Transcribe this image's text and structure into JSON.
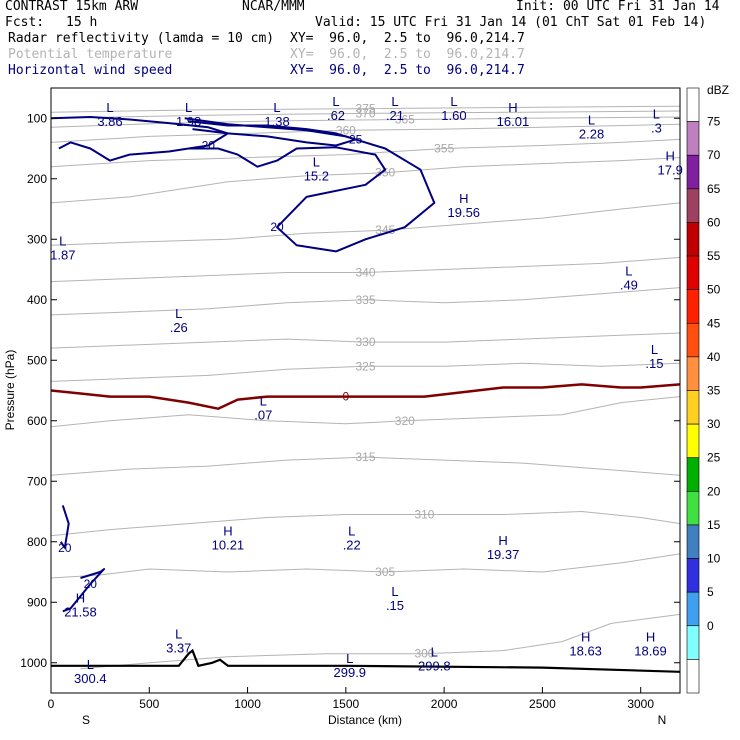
{
  "header": {
    "model": "CONTRAST 15km ARW",
    "center": "NCAR/MMM",
    "init": "Init: 00 UTC Fri 31 Jan 14",
    "fcst_label": "Fcst:",
    "fcst_value": "15 h",
    "valid": "Valid: 15 UTC Fri 31 Jan 14 (01 ChT Sat 01 Feb 14)"
  },
  "fields": [
    {
      "name": "Radar reflectivity (lamda = 10 cm)",
      "xy": "XY=  96.0,  2.5 to  96.0,214.7",
      "color": "#000000"
    },
    {
      "name": "Potential temperature",
      "xy": "XY=  96.0,  2.5 to  96.0,214.7",
      "color": "#b4b4b4"
    },
    {
      "name": "Horizontal wind speed",
      "xy": "XY=  96.0,  2.5 to  96.0,214.7",
      "color": "#000080"
    }
  ],
  "colorbar": {
    "unit": "dBZ",
    "levels": [
      "75",
      "70",
      "65",
      "60",
      "55",
      "50",
      "45",
      "40",
      "35",
      "30",
      "25",
      "20",
      "15",
      "10",
      "5",
      "0"
    ],
    "colors": [
      "#ffffff",
      "#c080c0",
      "#8020a0",
      "#a04060",
      "#c00000",
      "#e00000",
      "#ff2000",
      "#ff5010",
      "#ff9040",
      "#ffd020",
      "#ffff00",
      "#00b000",
      "#40e040",
      "#4080c0",
      "#3030e0",
      "#40a0f0",
      "#80ffff",
      "#ffffff"
    ]
  },
  "chart_data": {
    "type": "cross-section",
    "xlabel": "Distance (km)",
    "ylabel": "Pressure (hPa)",
    "xlim": [
      0,
      3200
    ],
    "ylim": [
      1050,
      50
    ],
    "x_ticks": [
      0,
      500,
      1000,
      1500,
      2000,
      2500,
      3000
    ],
    "y_ticks": [
      100,
      200,
      300,
      400,
      500,
      600,
      700,
      800,
      900,
      1000
    ],
    "x_ends": [
      "S",
      "N"
    ],
    "theta_contours": [
      {
        "label": "300",
        "pts": [
          [
            150,
            1010
          ],
          [
            500,
            1000
          ],
          [
            900,
            990
          ],
          [
            1400,
            985
          ],
          [
            1900,
            985
          ],
          [
            2300,
            980
          ],
          [
            2600,
            965
          ],
          [
            2850,
            935
          ],
          [
            3200,
            920
          ]
        ]
      },
      {
        "label": "305",
        "pts": [
          [
            0,
            860
          ],
          [
            250,
            855
          ],
          [
            500,
            845
          ],
          [
            900,
            850
          ],
          [
            1300,
            845
          ],
          [
            1700,
            850
          ],
          [
            2100,
            845
          ],
          [
            2500,
            850
          ],
          [
            2900,
            835
          ],
          [
            3200,
            820
          ]
        ]
      },
      {
        "label": "310",
        "pts": [
          [
            0,
            790
          ],
          [
            300,
            780
          ],
          [
            700,
            770
          ],
          [
            1100,
            760
          ],
          [
            1500,
            755
          ],
          [
            1900,
            755
          ],
          [
            2300,
            755
          ],
          [
            2700,
            750
          ],
          [
            3000,
            760
          ],
          [
            3200,
            770
          ]
        ]
      },
      {
        "label": "315",
        "pts": [
          [
            0,
            690
          ],
          [
            400,
            680
          ],
          [
            800,
            675
          ],
          [
            1200,
            665
          ],
          [
            1600,
            660
          ],
          [
            2000,
            665
          ],
          [
            2400,
            670
          ],
          [
            2800,
            680
          ],
          [
            3200,
            690
          ]
        ]
      },
      {
        "label": "320",
        "pts": [
          [
            0,
            610
          ],
          [
            300,
            600
          ],
          [
            700,
            590
          ],
          [
            1100,
            600
          ],
          [
            1500,
            605
          ],
          [
            1800,
            600
          ],
          [
            2200,
            595
          ],
          [
            2600,
            590
          ],
          [
            2900,
            570
          ],
          [
            3200,
            560
          ]
        ]
      },
      {
        "label": "325",
        "pts": [
          [
            0,
            535
          ],
          [
            400,
            530
          ],
          [
            800,
            525
          ],
          [
            1200,
            515
          ],
          [
            1600,
            510
          ],
          [
            2000,
            510
          ],
          [
            2400,
            505
          ],
          [
            2800,
            510
          ],
          [
            3200,
            505
          ]
        ]
      },
      {
        "label": "330",
        "pts": [
          [
            0,
            480
          ],
          [
            400,
            475
          ],
          [
            800,
            470
          ],
          [
            1200,
            465
          ],
          [
            1600,
            470
          ],
          [
            2000,
            470
          ],
          [
            2400,
            465
          ],
          [
            2800,
            460
          ],
          [
            3200,
            455
          ]
        ]
      },
      {
        "label": "335",
        "pts": [
          [
            0,
            425
          ],
          [
            400,
            420
          ],
          [
            800,
            415
          ],
          [
            1200,
            405
          ],
          [
            1600,
            400
          ],
          [
            2000,
            405
          ],
          [
            2400,
            400
          ],
          [
            2800,
            390
          ],
          [
            3200,
            380
          ]
        ]
      },
      {
        "label": "340",
        "pts": [
          [
            0,
            370
          ],
          [
            400,
            365
          ],
          [
            800,
            360
          ],
          [
            1200,
            355
          ],
          [
            1600,
            355
          ],
          [
            2000,
            350
          ],
          [
            2400,
            345
          ],
          [
            2800,
            340
          ],
          [
            3200,
            330
          ]
        ]
      },
      {
        "label": "345",
        "pts": [
          [
            0,
            310
          ],
          [
            400,
            305
          ],
          [
            900,
            300
          ],
          [
            1300,
            290
          ],
          [
            1700,
            285
          ],
          [
            2100,
            275
          ],
          [
            2500,
            265
          ],
          [
            2900,
            250
          ],
          [
            3200,
            240
          ]
        ]
      },
      {
        "label": "350",
        "pts": [
          [
            0,
            240
          ],
          [
            400,
            230
          ],
          [
            900,
            205
          ],
          [
            1300,
            195
          ],
          [
            1700,
            190
          ],
          [
            2100,
            180
          ],
          [
            2500,
            175
          ],
          [
            2900,
            170
          ],
          [
            3200,
            165
          ]
        ]
      },
      {
        "label": "355",
        "pts": [
          [
            0,
            180
          ],
          [
            500,
            170
          ],
          [
            1000,
            165
          ],
          [
            1500,
            160
          ],
          [
            2000,
            150
          ],
          [
            2500,
            145
          ],
          [
            2900,
            140
          ],
          [
            3200,
            135
          ]
        ]
      },
      {
        "label": "360",
        "pts": [
          [
            0,
            140
          ],
          [
            500,
            130
          ],
          [
            1000,
            125
          ],
          [
            1500,
            120
          ],
          [
            2000,
            118
          ],
          [
            2500,
            115
          ],
          [
            3200,
            110
          ]
        ]
      },
      {
        "label": "365",
        "pts": [
          [
            0,
            115
          ],
          [
            600,
            108
          ],
          [
            1200,
            104
          ],
          [
            1800,
            102
          ],
          [
            2400,
            100
          ],
          [
            3200,
            98
          ]
        ]
      },
      {
        "label": "370",
        "pts": [
          [
            0,
            100
          ],
          [
            800,
            95
          ],
          [
            1600,
            92
          ],
          [
            2400,
            90
          ],
          [
            3200,
            88
          ]
        ]
      },
      {
        "label": "375",
        "pts": [
          [
            0,
            90
          ],
          [
            800,
            86
          ],
          [
            1600,
            84
          ],
          [
            2400,
            82
          ],
          [
            3200,
            80
          ]
        ]
      }
    ],
    "wind_speed_contours": [
      {
        "label": "20",
        "pts": [
          [
            0,
            100
          ],
          [
            200,
            98
          ],
          [
            400,
            102
          ],
          [
            600,
            108
          ],
          [
            800,
            115
          ],
          [
            900,
            125
          ],
          [
            800,
            145
          ],
          [
            600,
            155
          ],
          [
            400,
            160
          ],
          [
            300,
            170
          ],
          [
            200,
            150
          ],
          [
            100,
            140
          ],
          [
            40,
            150
          ]
        ]
      },
      {
        "label": "20",
        "pts": [
          [
            680,
            100
          ],
          [
            900,
            110
          ],
          [
            1100,
            115
          ],
          [
            1300,
            120
          ],
          [
            1500,
            130
          ],
          [
            1700,
            150
          ],
          [
            1880,
            185
          ],
          [
            1950,
            240
          ],
          [
            1800,
            280
          ],
          [
            1600,
            300
          ],
          [
            1450,
            320
          ],
          [
            1250,
            310
          ],
          [
            1150,
            280
          ],
          [
            1300,
            230
          ],
          [
            1600,
            210
          ],
          [
            1700,
            185
          ],
          [
            1650,
            160
          ],
          [
            1450,
            148
          ],
          [
            1250,
            150
          ],
          [
            1150,
            170
          ],
          [
            1050,
            180
          ],
          [
            950,
            160
          ],
          [
            850,
            150
          ],
          [
            700,
            150
          ]
        ]
      },
      {
        "label": "25",
        "pts": [
          [
            700,
            105
          ],
          [
            900,
            112
          ],
          [
            1100,
            112
          ],
          [
            1300,
            118
          ],
          [
            1450,
            125
          ],
          [
            1550,
            135
          ],
          [
            1450,
            145
          ],
          [
            1300,
            140
          ],
          [
            1100,
            130
          ],
          [
            900,
            125
          ],
          [
            720,
            118
          ]
        ]
      },
      {
        "label": "20",
        "pts": [
          [
            60,
            740
          ],
          [
            90,
            770
          ],
          [
            70,
            810
          ],
          [
            50,
            800
          ]
        ]
      },
      {
        "label": "20",
        "pts": [
          [
            150,
            860
          ],
          [
            250,
            850
          ],
          [
            270,
            845
          ],
          [
            200,
            870
          ],
          [
            100,
            910
          ],
          [
            60,
            915
          ]
        ]
      }
    ],
    "reflectivity_contours": [
      {
        "label": "0",
        "pts": [
          [
            0,
            550
          ],
          [
            150,
            555
          ],
          [
            300,
            560
          ],
          [
            500,
            560
          ],
          [
            700,
            570
          ],
          [
            850,
            580
          ],
          [
            950,
            565
          ],
          [
            1100,
            560
          ],
          [
            1500,
            560
          ],
          [
            1900,
            560
          ],
          [
            2300,
            545
          ],
          [
            2500,
            545
          ],
          [
            2700,
            540
          ],
          [
            2900,
            545
          ],
          [
            3000,
            545
          ],
          [
            3200,
            540
          ]
        ]
      }
    ],
    "terrain_pts": [
      [
        0,
        1005
      ],
      [
        500,
        1005
      ],
      [
        650,
        1005
      ],
      [
        700,
        985
      ],
      [
        720,
        980
      ],
      [
        750,
        1005
      ],
      [
        820,
        1000
      ],
      [
        860,
        995
      ],
      [
        900,
        1005
      ],
      [
        1500,
        1005
      ],
      [
        2500,
        1008
      ],
      [
        3200,
        1015
      ]
    ],
    "hl_labels": [
      {
        "sym": "L",
        "val": "3.86",
        "x": 300,
        "p": 90
      },
      {
        "sym": "L",
        "val": "1.98",
        "x": 700,
        "p": 90
      },
      {
        "sym": "L",
        "val": "1.38",
        "x": 1150,
        "p": 90
      },
      {
        "sym": "L",
        "val": ".62",
        "x": 1450,
        "p": 80
      },
      {
        "sym": "L",
        "val": ".21",
        "x": 1750,
        "p": 80
      },
      {
        "sym": "L",
        "val": "1.60",
        "x": 2050,
        "p": 80
      },
      {
        "sym": "H",
        "val": "16.01",
        "x": 2350,
        "p": 90
      },
      {
        "sym": "L",
        "val": "2.28",
        "x": 2750,
        "p": 110
      },
      {
        "sym": "L",
        "val": ".3",
        "x": 3080,
        "p": 100
      },
      {
        "sym": "H",
        "val": "17.9",
        "x": 3150,
        "p": 170
      },
      {
        "sym": "L",
        "val": "15.2",
        "x": 1350,
        "p": 180
      },
      {
        "sym": "H",
        "val": "19.56",
        "x": 2100,
        "p": 240
      },
      {
        "sym": "L",
        "val": "1.87",
        "x": 60,
        "p": 310
      },
      {
        "sym": "L",
        "val": ".49",
        "x": 2940,
        "p": 360
      },
      {
        "sym": "L",
        "val": ".26",
        "x": 650,
        "p": 430
      },
      {
        "sym": "L",
        "val": ".15",
        "x": 3070,
        "p": 490
      },
      {
        "sym": "L",
        "val": ".07",
        "x": 1080,
        "p": 575
      },
      {
        "sym": "H",
        "val": "10.21",
        "x": 900,
        "p": 790
      },
      {
        "sym": "L",
        "val": ".22",
        "x": 1530,
        "p": 790
      },
      {
        "sym": "H",
        "val": "19.37",
        "x": 2300,
        "p": 805
      },
      {
        "sym": "H",
        "val": "21.58",
        "x": 150,
        "p": 900
      },
      {
        "sym": "L",
        "val": ".15",
        "x": 1750,
        "p": 890
      },
      {
        "sym": "L",
        "val": "3.37",
        "x": 650,
        "p": 960
      },
      {
        "sym": "H",
        "val": "18.63",
        "x": 2720,
        "p": 965
      },
      {
        "sym": "H",
        "val": "18.69",
        "x": 3050,
        "p": 965
      },
      {
        "sym": "L",
        "val": "300.4",
        "x": 200,
        "p": 1010
      },
      {
        "sym": "L",
        "val": "299.9",
        "x": 1520,
        "p": 1000
      },
      {
        "sym": "L",
        "val": "299.8",
        "x": 1950,
        "p": 990
      }
    ]
  }
}
